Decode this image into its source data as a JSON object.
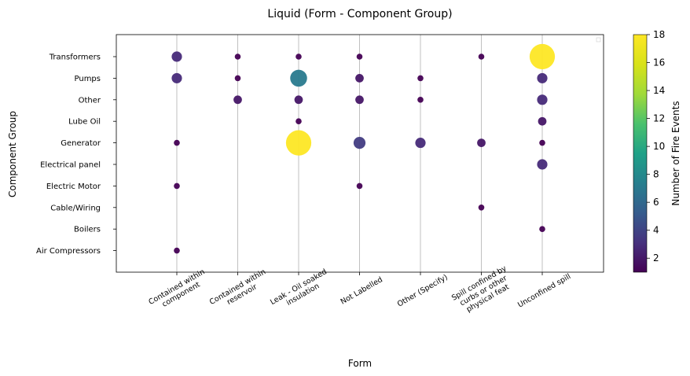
{
  "chart_data": {
    "type": "scatter",
    "title": "Liquid (Form - Component Group)",
    "xlabel": "Form",
    "ylabel": "Component Group",
    "x_categories": [
      [
        "Contained within",
        "component"
      ],
      [
        "Contained within",
        "reservoir"
      ],
      [
        "Leak - Oil soaked",
        "insulation"
      ],
      [
        "Not Labelled"
      ],
      [
        "Other (Specify)"
      ],
      [
        "Spill confined by",
        "curbs or other",
        "physical feat"
      ],
      [
        "Unconfined spill"
      ]
    ],
    "y_categories": [
      "Transformers",
      "Pumps",
      "Other",
      "Lube Oil",
      "Generator",
      "Electrical panel",
      "Electric Motor",
      "Cable/Wiring",
      "Boilers",
      "Air Compressors"
    ],
    "points": [
      {
        "x": 0,
        "y": "Transformers",
        "count": 3
      },
      {
        "x": 1,
        "y": "Transformers",
        "count": 1
      },
      {
        "x": 2,
        "y": "Transformers",
        "count": 1
      },
      {
        "x": 3,
        "y": "Transformers",
        "count": 1
      },
      {
        "x": 5,
        "y": "Transformers",
        "count": 1
      },
      {
        "x": 6,
        "y": "Transformers",
        "count": 18
      },
      {
        "x": 0,
        "y": "Pumps",
        "count": 3
      },
      {
        "x": 1,
        "y": "Pumps",
        "count": 1
      },
      {
        "x": 2,
        "y": "Pumps",
        "count": 8
      },
      {
        "x": 3,
        "y": "Pumps",
        "count": 2
      },
      {
        "x": 4,
        "y": "Pumps",
        "count": 1
      },
      {
        "x": 6,
        "y": "Pumps",
        "count": 3
      },
      {
        "x": 1,
        "y": "Other",
        "count": 2
      },
      {
        "x": 2,
        "y": "Other",
        "count": 2
      },
      {
        "x": 3,
        "y": "Other",
        "count": 2
      },
      {
        "x": 4,
        "y": "Other",
        "count": 1
      },
      {
        "x": 6,
        "y": "Other",
        "count": 3
      },
      {
        "x": 2,
        "y": "Lube Oil",
        "count": 1
      },
      {
        "x": 6,
        "y": "Lube Oil",
        "count": 2
      },
      {
        "x": 0,
        "y": "Generator",
        "count": 1
      },
      {
        "x": 2,
        "y": "Generator",
        "count": 18
      },
      {
        "x": 3,
        "y": "Generator",
        "count": 4
      },
      {
        "x": 4,
        "y": "Generator",
        "count": 3
      },
      {
        "x": 5,
        "y": "Generator",
        "count": 2
      },
      {
        "x": 6,
        "y": "Generator",
        "count": 1
      },
      {
        "x": 6,
        "y": "Electrical panel",
        "count": 3
      },
      {
        "x": 0,
        "y": "Electric Motor",
        "count": 1
      },
      {
        "x": 3,
        "y": "Electric Motor",
        "count": 1
      },
      {
        "x": 5,
        "y": "Cable/Wiring",
        "count": 1
      },
      {
        "x": 6,
        "y": "Boilers",
        "count": 1
      },
      {
        "x": 0,
        "y": "Air Compressors",
        "count": 1
      }
    ],
    "colorbar": {
      "label": "Number of Fire Events",
      "min": 1,
      "max": 18,
      "ticks": [
        2,
        4,
        6,
        8,
        10,
        12,
        14,
        16,
        18
      ],
      "colormap": "viridis"
    },
    "grid": "vertical",
    "legend": "upper right (empty)"
  }
}
